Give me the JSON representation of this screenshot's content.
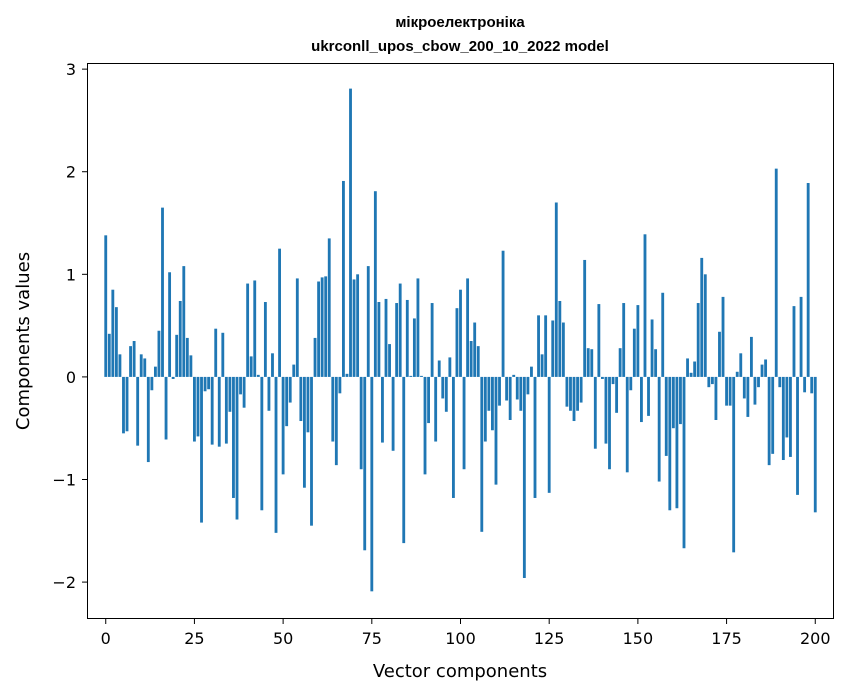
{
  "chart_data": {
    "type": "bar",
    "title": "мікроелектроніка",
    "subtitle": "ukrconll_upos_cbow_200_10_2022 model",
    "xlabel": "Vector components",
    "ylabel": "Components values",
    "xlim": [
      -5,
      205
    ],
    "ylim": [
      -2.35,
      3.05
    ],
    "xticks": [
      0,
      25,
      50,
      75,
      100,
      125,
      150,
      175,
      200
    ],
    "xtick_labels": [
      "0",
      "25",
      "50",
      "75",
      "100",
      "125",
      "150",
      "175",
      "200"
    ],
    "yticks": [
      -2,
      -1,
      0,
      1,
      2,
      3
    ],
    "ytick_labels": [
      "−2",
      "−1",
      "0",
      "1",
      "2",
      "3"
    ],
    "grid": false,
    "color": "#1f77b4",
    "values": [
      1.38,
      0.42,
      0.85,
      0.68,
      0.22,
      -0.55,
      -0.53,
      0.3,
      0.35,
      -0.67,
      0.22,
      0.18,
      -0.83,
      -0.13,
      0.1,
      0.45,
      1.65,
      -0.61,
      1.02,
      -0.02,
      0.41,
      0.74,
      1.08,
      0.38,
      0.21,
      -0.63,
      -0.58,
      -1.42,
      -0.14,
      -0.12,
      -0.66,
      0.47,
      -0.68,
      0.43,
      -0.65,
      -0.34,
      -1.18,
      -1.39,
      -0.17,
      -0.3,
      0.91,
      0.2,
      0.94,
      0.02,
      -1.3,
      0.73,
      -0.33,
      0.23,
      -1.52,
      1.25,
      -0.95,
      -0.48,
      -0.25,
      0.12,
      0.96,
      -0.43,
      -1.08,
      -0.54,
      -1.45,
      0.38,
      0.93,
      0.97,
      0.98,
      1.35,
      -0.63,
      -0.86,
      -0.16,
      1.91,
      0.03,
      2.81,
      0.95,
      1.0,
      -0.9,
      -1.69,
      1.08,
      -2.09,
      1.81,
      0.73,
      -0.64,
      0.76,
      0.32,
      -0.72,
      0.72,
      0.91,
      -1.62,
      0.75,
      0.01,
      0.57,
      0.96,
      0.01,
      -0.95,
      -0.45,
      0.72,
      -0.63,
      0.16,
      -0.21,
      -0.34,
      0.19,
      -1.18,
      0.67,
      0.85,
      -0.9,
      0.96,
      0.35,
      0.53,
      0.3,
      -1.51,
      -0.63,
      -0.33,
      -0.52,
      -1.05,
      -0.28,
      1.23,
      -0.23,
      -0.42,
      0.02,
      -0.22,
      -0.33,
      -1.96,
      -0.17,
      0.1,
      -1.18,
      0.6,
      0.22,
      0.6,
      -1.13,
      0.55,
      1.7,
      0.74,
      0.53,
      -0.29,
      -0.33,
      -0.43,
      -0.33,
      -0.25,
      1.14,
      0.28,
      0.27,
      -0.7,
      0.71,
      -0.02,
      -0.65,
      -0.9,
      -0.07,
      -0.35,
      0.28,
      0.72,
      -0.93,
      -0.13,
      0.47,
      0.7,
      -0.44,
      1.39,
      -0.38,
      0.56,
      0.27,
      -1.02,
      0.82,
      -0.77,
      -1.3,
      -0.5,
      -1.28,
      -0.46,
      -1.67,
      0.18,
      0.04,
      0.15,
      0.72,
      1.16,
      1.0,
      -0.1,
      -0.07,
      -0.42,
      0.44,
      0.78,
      -0.28,
      -0.28,
      -1.71,
      0.05,
      0.23,
      -0.21,
      -0.39,
      0.39,
      -0.27,
      -0.1,
      0.12,
      0.17,
      -0.86,
      -0.75,
      2.03,
      -0.1,
      -0.81,
      -0.59,
      -0.78,
      0.69,
      -1.15,
      0.78,
      -0.15,
      1.89,
      -0.16,
      -1.32
    ]
  }
}
